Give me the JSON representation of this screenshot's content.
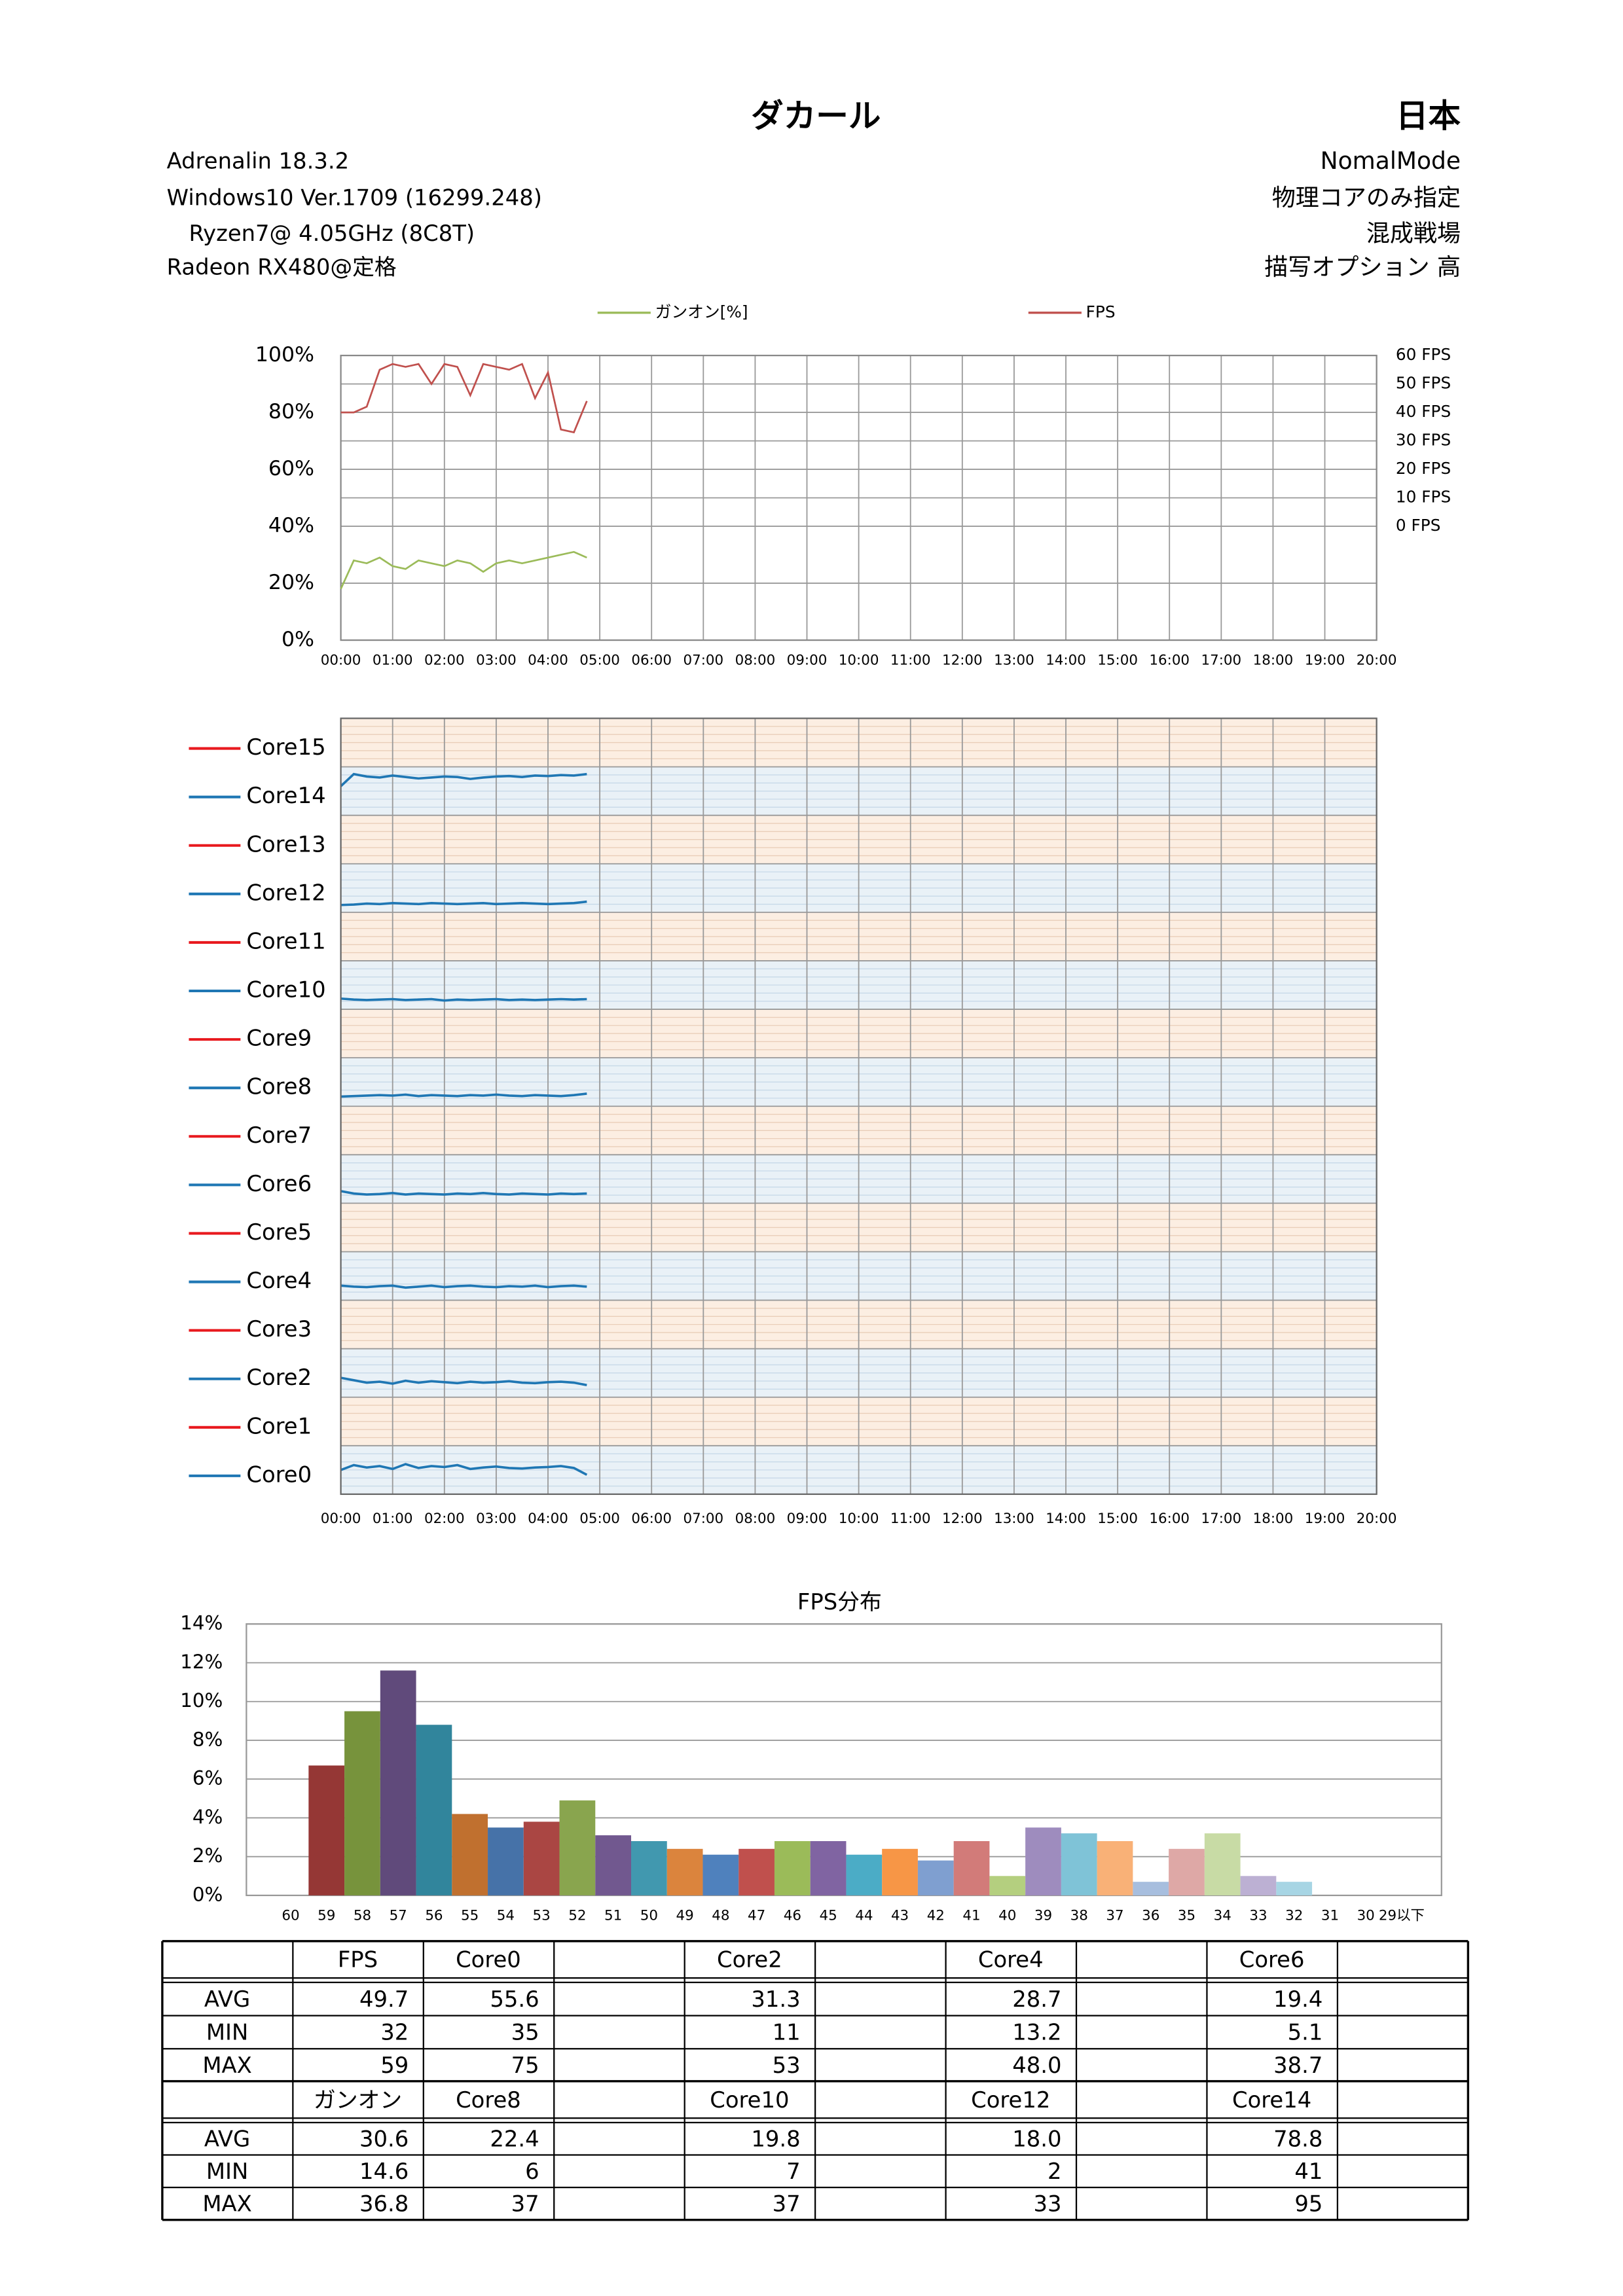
{
  "header": {
    "title": "ダカール",
    "region": "日本",
    "left": [
      "Adrenalin  18.3.2",
      "Windows10  Ver.1709 (16299.248)",
      "Ryzen7@ 4.05GHz  (8C8T)",
      "Radeon RX480@定格"
    ],
    "right": [
      "NomalMode",
      "物理コアのみ指定",
      "混成戦場",
      "描写オプション  高"
    ]
  },
  "chart_data": [
    {
      "type": "line",
      "x": [
        0,
        0.25,
        0.5,
        0.75,
        1,
        1.25,
        1.5,
        1.75,
        2,
        2.25,
        2.5,
        2.75,
        3,
        3.25,
        3.5,
        3.75,
        4,
        4.25,
        4.5,
        4.75
      ],
      "xlim": [
        0,
        20
      ],
      "xticks": [
        {
          "value": 0,
          "label": "00:00"
        },
        {
          "value": 1,
          "label": "01:00"
        },
        {
          "value": 2,
          "label": "02:00"
        },
        {
          "value": 3,
          "label": "03:00"
        },
        {
          "value": 4,
          "label": "04:00"
        },
        {
          "value": 5,
          "label": "05:00"
        },
        {
          "value": 6,
          "label": "06:00"
        },
        {
          "value": 7,
          "label": "07:00"
        },
        {
          "value": 8,
          "label": "08:00"
        },
        {
          "value": 9,
          "label": "09:00"
        },
        {
          "value": 10,
          "label": "10:00"
        },
        {
          "value": 11,
          "label": "11:00"
        },
        {
          "value": 12,
          "label": "12:00"
        },
        {
          "value": 13,
          "label": "13:00"
        },
        {
          "value": 14,
          "label": "14:00"
        },
        {
          "value": 15,
          "label": "15:00"
        },
        {
          "value": 16,
          "label": "16:00"
        },
        {
          "value": 17,
          "label": "17:00"
        },
        {
          "value": 18,
          "label": "18:00"
        },
        {
          "value": 19,
          "label": "19:00"
        },
        {
          "value": 20,
          "label": "20:00"
        }
      ],
      "ylim": [
        0,
        100
      ],
      "yticks": [
        {
          "value": 0,
          "label": "0%"
        },
        {
          "value": 20,
          "label": "20%"
        },
        {
          "value": 40,
          "label": "40%"
        },
        {
          "value": 60,
          "label": "60%"
        },
        {
          "value": 80,
          "label": "80%"
        },
        {
          "value": 100,
          "label": "100%"
        }
      ],
      "y2lim": [
        -40,
        60
      ],
      "y2ticks": [
        {
          "value": 0,
          "label": "0 FPS"
        },
        {
          "value": 10,
          "label": "10 FPS"
        },
        {
          "value": 20,
          "label": "20 FPS"
        },
        {
          "value": 30,
          "label": "30 FPS"
        },
        {
          "value": 40,
          "label": "40 FPS"
        },
        {
          "value": 50,
          "label": "50 FPS"
        },
        {
          "value": 60,
          "label": "60 FPS"
        }
      ],
      "grid": true,
      "series": [
        {
          "name": "ガンオン[%]",
          "color": "#9BBB59",
          "values": [
            18,
            28,
            27,
            29,
            26,
            25,
            28,
            27,
            26,
            28,
            27,
            24,
            27,
            28,
            27,
            28,
            29,
            30,
            31,
            29
          ]
        },
        {
          "name": "FPS",
          "color": "#C0504D",
          "axis": "y2",
          "values": [
            40,
            40,
            42,
            55,
            57,
            56,
            57,
            50,
            57,
            56,
            46,
            57,
            56,
            55,
            57,
            45,
            54,
            34,
            33,
            44
          ]
        }
      ]
    },
    {
      "type": "lanes",
      "x": [
        0,
        0.25,
        0.5,
        0.75,
        1,
        1.25,
        1.5,
        1.75,
        2,
        2.25,
        2.5,
        2.75,
        3,
        3.25,
        3.5,
        3.75,
        4,
        4.25,
        4.5,
        4.75
      ],
      "xlim": [
        0,
        20
      ],
      "xticks": [
        {
          "value": 0,
          "label": "00:00"
        },
        {
          "value": 1,
          "label": "01:00"
        },
        {
          "value": 2,
          "label": "02:00"
        },
        {
          "value": 3,
          "label": "03:00"
        },
        {
          "value": 4,
          "label": "04:00"
        },
        {
          "value": 5,
          "label": "05:00"
        },
        {
          "value": 6,
          "label": "06:00"
        },
        {
          "value": 7,
          "label": "07:00"
        },
        {
          "value": 8,
          "label": "08:00"
        },
        {
          "value": 9,
          "label": "09:00"
        },
        {
          "value": 10,
          "label": "10:00"
        },
        {
          "value": 11,
          "label": "11:00"
        },
        {
          "value": 12,
          "label": "12:00"
        },
        {
          "value": 13,
          "label": "13:00"
        },
        {
          "value": 14,
          "label": "14:00"
        },
        {
          "value": 15,
          "label": "15:00"
        },
        {
          "value": 16,
          "label": "16:00"
        },
        {
          "value": 17,
          "label": "17:00"
        },
        {
          "value": 18,
          "label": "18:00"
        },
        {
          "value": 19,
          "label": "19:00"
        },
        {
          "value": 20,
          "label": "20:00"
        }
      ],
      "ylim": [
        0,
        100
      ],
      "series": [
        {
          "name": "Core0",
          "color": "#1F77B4",
          "values": [
            50,
            60,
            55,
            58,
            52,
            62,
            54,
            58,
            56,
            60,
            52,
            55,
            57,
            54,
            53,
            55,
            56,
            58,
            54,
            40
          ]
        },
        {
          "name": "Core1",
          "color": "#E8191E",
          "values": [
            null,
            null,
            null,
            null,
            null,
            null,
            null,
            null,
            null,
            null,
            null,
            null,
            null,
            null,
            null,
            null,
            null,
            null,
            null,
            null
          ]
        },
        {
          "name": "Core2",
          "color": "#1F77B4",
          "values": [
            40,
            35,
            30,
            32,
            28,
            34,
            30,
            33,
            31,
            29,
            32,
            30,
            31,
            33,
            30,
            29,
            31,
            32,
            30,
            25
          ]
        },
        {
          "name": "Core3",
          "color": "#E8191E",
          "values": [
            null,
            null,
            null,
            null,
            null,
            null,
            null,
            null,
            null,
            null,
            null,
            null,
            null,
            null,
            null,
            null,
            null,
            null,
            null,
            null
          ]
        },
        {
          "name": "Core4",
          "color": "#1F77B4",
          "values": [
            30,
            28,
            27,
            29,
            30,
            26,
            28,
            30,
            27,
            29,
            30,
            28,
            27,
            29,
            28,
            30,
            27,
            29,
            30,
            28
          ]
        },
        {
          "name": "Core5",
          "color": "#E8191E",
          "values": [
            null,
            null,
            null,
            null,
            null,
            null,
            null,
            null,
            null,
            null,
            null,
            null,
            null,
            null,
            null,
            null,
            null,
            null,
            null,
            null
          ]
        },
        {
          "name": "Core6",
          "color": "#1F77B4",
          "values": [
            25,
            20,
            18,
            19,
            21,
            18,
            20,
            19,
            18,
            20,
            19,
            21,
            19,
            18,
            20,
            19,
            18,
            20,
            19,
            20
          ]
        },
        {
          "name": "Core7",
          "color": "#E8191E",
          "values": [
            null,
            null,
            null,
            null,
            null,
            null,
            null,
            null,
            null,
            null,
            null,
            null,
            null,
            null,
            null,
            null,
            null,
            null,
            null,
            null
          ]
        },
        {
          "name": "Core8",
          "color": "#1F77B4",
          "values": [
            20,
            21,
            22,
            23,
            22,
            24,
            21,
            23,
            22,
            21,
            23,
            22,
            24,
            22,
            21,
            23,
            22,
            21,
            23,
            26
          ]
        },
        {
          "name": "Core9",
          "color": "#E8191E",
          "values": [
            null,
            null,
            null,
            null,
            null,
            null,
            null,
            null,
            null,
            null,
            null,
            null,
            null,
            null,
            null,
            null,
            null,
            null,
            null,
            null
          ]
        },
        {
          "name": "Core10",
          "color": "#1F77B4",
          "values": [
            22,
            20,
            19,
            20,
            21,
            19,
            20,
            21,
            18,
            20,
            19,
            20,
            21,
            19,
            20,
            19,
            20,
            21,
            20,
            21
          ]
        },
        {
          "name": "Core11",
          "color": "#E8191E",
          "values": [
            null,
            null,
            null,
            null,
            null,
            null,
            null,
            null,
            null,
            null,
            null,
            null,
            null,
            null,
            null,
            null,
            null,
            null,
            null,
            null
          ]
        },
        {
          "name": "Core12",
          "color": "#1F77B4",
          "values": [
            15,
            16,
            18,
            17,
            19,
            18,
            17,
            19,
            18,
            17,
            18,
            19,
            17,
            18,
            19,
            18,
            17,
            18,
            19,
            22
          ]
        },
        {
          "name": "Core13",
          "color": "#E8191E",
          "values": [
            null,
            null,
            null,
            null,
            null,
            null,
            null,
            null,
            null,
            null,
            null,
            null,
            null,
            null,
            null,
            null,
            null,
            null,
            null,
            null
          ]
        },
        {
          "name": "Core14",
          "color": "#1F77B4",
          "values": [
            60,
            85,
            80,
            78,
            82,
            79,
            76,
            78,
            80,
            79,
            75,
            78,
            80,
            81,
            79,
            82,
            81,
            83,
            82,
            85
          ]
        },
        {
          "name": "Core15",
          "color": "#E8191E",
          "values": [
            null,
            null,
            null,
            null,
            null,
            null,
            null,
            null,
            null,
            null,
            null,
            null,
            null,
            null,
            null,
            null,
            null,
            null,
            null,
            null
          ]
        }
      ]
    },
    {
      "type": "bar",
      "title": "FPS分布",
      "categories": [
        "60",
        "59",
        "58",
        "57",
        "56",
        "55",
        "54",
        "53",
        "52",
        "51",
        "50",
        "49",
        "48",
        "47",
        "46",
        "45",
        "44",
        "43",
        "42",
        "41",
        "40",
        "39",
        "38",
        "37",
        "36",
        "35",
        "34",
        "33",
        "32",
        "31",
        "30",
        "29以下"
      ],
      "values": [
        0,
        6.7,
        9.5,
        11.6,
        8.8,
        4.2,
        3.5,
        3.8,
        4.9,
        3.1,
        2.8,
        2.4,
        2.1,
        2.4,
        2.8,
        2.8,
        2.1,
        2.4,
        1.8,
        2.8,
        1.0,
        3.5,
        3.2,
        2.8,
        0.7,
        2.4,
        3.2,
        1.0,
        0.7,
        0,
        0,
        0
      ],
      "colors": [
        "#953735",
        "#953735",
        "#77933C",
        "#604A7B",
        "#31859C",
        "#C0702F",
        "#4672A8",
        "#AA4643",
        "#89A54E",
        "#71588F",
        "#4198AF",
        "#DB843D",
        "#4F81BD",
        "#C0504D",
        "#9BBB59",
        "#8064A2",
        "#4BACC6",
        "#F79646",
        "#7F9FD0",
        "#D27B79",
        "#B4CF7F",
        "#9E8CBE",
        "#7FC3D7",
        "#F9B177",
        "#A7BEDE",
        "#DEA8A6",
        "#C8DBA5",
        "#BCB0D3",
        "#A7D5E4",
        "#FBC8A2",
        "#C0C0C0",
        "#C0C0C0"
      ],
      "ylim": [
        0,
        14
      ],
      "yticks": [
        {
          "value": 0,
          "label": "0%"
        },
        {
          "value": 2,
          "label": "2%"
        },
        {
          "value": 4,
          "label": "4%"
        },
        {
          "value": 6,
          "label": "6%"
        },
        {
          "value": 8,
          "label": "8%"
        },
        {
          "value": 10,
          "label": "10%"
        },
        {
          "value": 12,
          "label": "12%"
        },
        {
          "value": 14,
          "label": "14%"
        }
      ],
      "grid": true
    }
  ],
  "table": {
    "blocks": [
      {
        "columns": [
          "FPS",
          "Core0",
          "Core2",
          "Core4",
          "Core6"
        ],
        "rows": [
          {
            "label": "AVG",
            "values": [
              "49.7",
              "55.6",
              "31.3",
              "28.7",
              "19.4"
            ]
          },
          {
            "label": "MIN",
            "values": [
              "32",
              "35",
              "11",
              "13.2",
              "5.1"
            ]
          },
          {
            "label": "MAX",
            "values": [
              "59",
              "75",
              "53",
              "48.0",
              "38.7"
            ]
          }
        ]
      },
      {
        "columns": [
          "ガンオン",
          "Core8",
          "Core10",
          "Core12",
          "Core14"
        ],
        "rows": [
          {
            "label": "AVG",
            "values": [
              "30.6",
              "22.4",
              "19.8",
              "18.0",
              "78.8"
            ]
          },
          {
            "label": "MIN",
            "values": [
              "14.6",
              "6",
              "7",
              "2",
              "41"
            ]
          },
          {
            "label": "MAX",
            "values": [
              "36.8",
              "37",
              "37",
              "33",
              "95"
            ]
          }
        ]
      }
    ]
  }
}
